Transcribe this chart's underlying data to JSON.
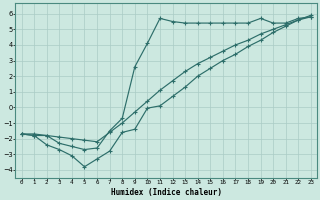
{
  "xlabel": "Humidex (Indice chaleur)",
  "bg_color": "#cce8e0",
  "line_color": "#2d6e6a",
  "grid_color": "#aaccc6",
  "xlim": [
    -0.5,
    23.5
  ],
  "ylim": [
    -4.5,
    6.7
  ],
  "yticks": [
    -4,
    -3,
    -2,
    -1,
    0,
    1,
    2,
    3,
    4,
    5,
    6
  ],
  "xticks": [
    0,
    1,
    2,
    3,
    4,
    5,
    6,
    7,
    8,
    9,
    10,
    11,
    12,
    13,
    14,
    15,
    16,
    17,
    18,
    19,
    20,
    21,
    22,
    23
  ],
  "line1_x": [
    0,
    1,
    2,
    3,
    4,
    5,
    6,
    7,
    8,
    9,
    10,
    11,
    12,
    13,
    14,
    15,
    16,
    17,
    18,
    19,
    20,
    21,
    22,
    23
  ],
  "line1_y": [
    -1.7,
    -1.8,
    -1.8,
    -2.3,
    -2.5,
    -2.7,
    -2.6,
    -1.5,
    -0.7,
    2.6,
    4.1,
    5.7,
    5.5,
    5.4,
    5.4,
    5.4,
    5.4,
    5.4,
    5.4,
    5.7,
    5.4,
    5.4,
    5.7,
    5.8
  ],
  "line2_x": [
    0,
    1,
    2,
    3,
    4,
    5,
    6,
    7,
    8,
    9,
    10,
    11,
    12,
    13,
    14,
    15,
    16,
    17,
    18,
    19,
    20,
    21,
    22,
    23
  ],
  "line2_y": [
    -1.7,
    -1.7,
    -1.8,
    -1.9,
    -2.0,
    -2.1,
    -2.2,
    -1.6,
    -1.0,
    -0.3,
    0.4,
    1.1,
    1.7,
    2.3,
    2.8,
    3.2,
    3.6,
    4.0,
    4.3,
    4.7,
    5.0,
    5.3,
    5.6,
    5.8
  ],
  "line3_x": [
    0,
    1,
    2,
    3,
    4,
    5,
    6,
    7,
    8,
    9,
    10,
    11,
    12,
    13,
    14,
    15,
    16,
    17,
    18,
    19,
    20,
    21,
    22,
    23
  ],
  "line3_y": [
    -1.7,
    -1.8,
    -2.4,
    -2.7,
    -3.1,
    -3.8,
    -3.3,
    -2.8,
    -1.6,
    -1.4,
    -0.05,
    0.1,
    0.7,
    1.3,
    2.0,
    2.5,
    3.0,
    3.4,
    3.9,
    4.3,
    4.8,
    5.2,
    5.6,
    5.9
  ]
}
